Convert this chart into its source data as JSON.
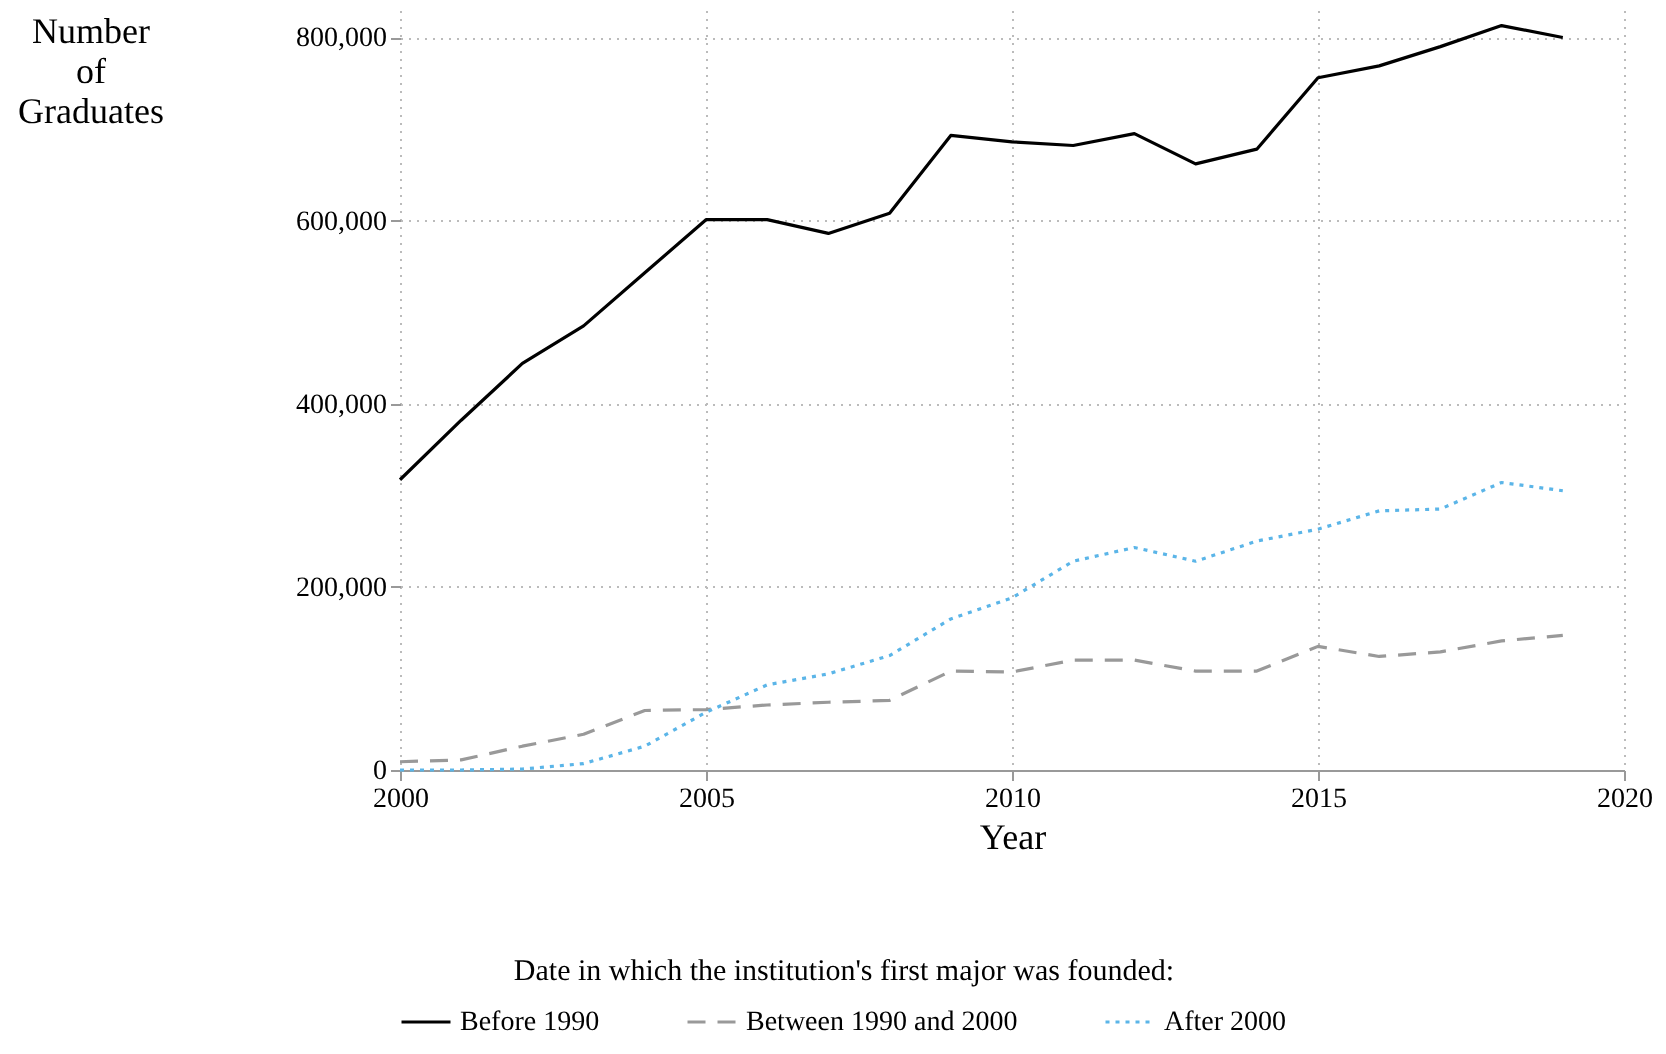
{
  "chart_data": {
    "type": "line",
    "xlabel": "Year",
    "ylabel": "Number of Graduates",
    "legend_title": "Date in which the institution's first major was founded:",
    "x": [
      2000,
      2001,
      2002,
      2003,
      2004,
      2005,
      2006,
      2007,
      2008,
      2009,
      2010,
      2011,
      2012,
      2013,
      2014,
      2015,
      2016,
      2017,
      2018,
      2019
    ],
    "series": [
      {
        "name": "Before 1990",
        "color": "#000000",
        "line_style": "solid",
        "values": [
          317000,
          382000,
          444000,
          485000,
          543000,
          601000,
          601000,
          586000,
          608000,
          693000,
          686000,
          682000,
          695000,
          662000,
          678000,
          756000,
          769000,
          790000,
          813000,
          800000
        ]
      },
      {
        "name": "Between 1990 and 2000",
        "color": "#999999",
        "line_style": "dashed",
        "values": [
          9000,
          11000,
          26000,
          39000,
          65000,
          66000,
          71000,
          74000,
          76000,
          108000,
          107000,
          120000,
          120000,
          108000,
          108000,
          135000,
          124000,
          129000,
          141000,
          147000
        ]
      },
      {
        "name": "After 2000",
        "color": "#5bb5e8",
        "line_style": "dotted",
        "values": [
          0,
          0,
          1000,
          7000,
          26000,
          63000,
          93000,
          105000,
          125000,
          165000,
          188000,
          228000,
          243000,
          228000,
          250000,
          263000,
          283000,
          285000,
          314000,
          305000
        ]
      }
    ],
    "xlim": [
      2000,
      2020
    ],
    "xticks": [
      2000,
      2005,
      2010,
      2015,
      2020
    ],
    "ylim": [
      0,
      830000
    ],
    "yticks": [
      0,
      {
        "value": 200000,
        "label": "200,000"
      },
      {
        "value": 400000,
        "label": "400,000"
      },
      {
        "value": 600000,
        "label": "600,000"
      },
      {
        "value": 800000,
        "label": "800,000"
      }
    ],
    "grid": true,
    "legend": "bottom",
    "marker": "none"
  }
}
